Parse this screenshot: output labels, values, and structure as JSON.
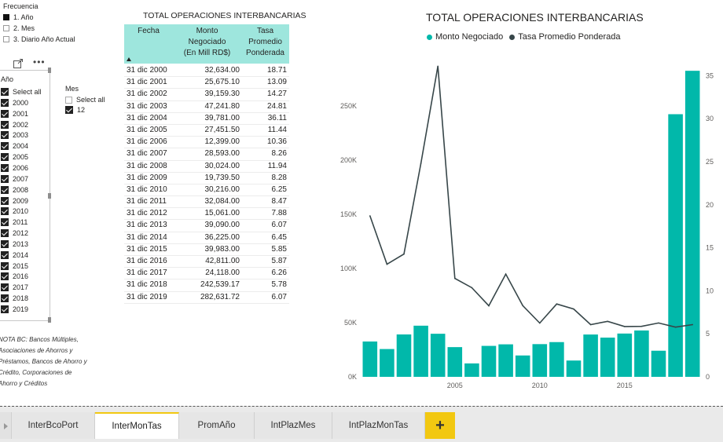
{
  "freq_slicer": {
    "title": "Frecuencia",
    "items": [
      {
        "label": "1. Año",
        "checked": true
      },
      {
        "label": "2. Mes",
        "checked": false
      },
      {
        "label": "3. Diario Año Actual",
        "checked": false
      }
    ]
  },
  "toolbar": {
    "more_label": "•••"
  },
  "year_slicer": {
    "title": "Año",
    "select_all": "Select all",
    "years": [
      "2000",
      "2001",
      "2002",
      "2003",
      "2004",
      "2005",
      "2006",
      "2007",
      "2008",
      "2009",
      "2010",
      "2011",
      "2012",
      "2013",
      "2014",
      "2015",
      "2016",
      "2017",
      "2018",
      "2019"
    ]
  },
  "mes_slicer": {
    "title": "Mes",
    "select_all": "Select all",
    "items": [
      "12"
    ]
  },
  "note": "NOTA BC: Bancos Múltiples, Asociaciones de Ahorros y Préstamos, Bancos de Ahorro y Crédito, Corporaciones de Ahorro y Créditos",
  "table": {
    "title": "TOTAL OPERACIONES INTERBANCARIAS",
    "headers": [
      "Fecha",
      "Monto Negociado (En Mill RD$)",
      "Tasa Promedio Ponderada"
    ],
    "header_lines": [
      [
        "Fecha"
      ],
      [
        "Monto",
        "Negociado",
        "(En Mill RD$)"
      ],
      [
        "Tasa",
        "Promedio",
        "Ponderada"
      ]
    ],
    "rows": [
      [
        "31 dic 2000",
        "32,634.00",
        "18.71"
      ],
      [
        "31 dic 2001",
        "25,675.10",
        "13.09"
      ],
      [
        "31 dic 2002",
        "39,159.30",
        "14.27"
      ],
      [
        "31 dic 2003",
        "47,241.80",
        "24.81"
      ],
      [
        "31 dic 2004",
        "39,781.00",
        "36.11"
      ],
      [
        "31 dic 2005",
        "27,451.50",
        "11.44"
      ],
      [
        "31 dic 2006",
        "12,399.00",
        "10.36"
      ],
      [
        "31 dic 2007",
        "28,593.00",
        "8.26"
      ],
      [
        "31 dic 2008",
        "30,024.00",
        "11.94"
      ],
      [
        "31 dic 2009",
        "19,739.50",
        "8.28"
      ],
      [
        "31 dic 2010",
        "30,216.00",
        "6.25"
      ],
      [
        "31 dic 2011",
        "32,084.00",
        "8.47"
      ],
      [
        "31 dic 2012",
        "15,061.00",
        "7.88"
      ],
      [
        "31 dic 2013",
        "39,090.00",
        "6.07"
      ],
      [
        "31 dic 2014",
        "36,225.00",
        "6.45"
      ],
      [
        "31 dic 2015",
        "39,983.00",
        "5.85"
      ],
      [
        "31 dic 2016",
        "42,811.00",
        "5.87"
      ],
      [
        "31 dic 2017",
        "24,118.00",
        "6.26"
      ],
      [
        "31 dic 2018",
        "242,539.17",
        "5.78"
      ],
      [
        "31 dic 2019",
        "282,631.72",
        "6.07"
      ]
    ]
  },
  "chart_data": {
    "type": "bar",
    "title": "TOTAL OPERACIONES INTERBANCARIAS",
    "x": [
      2000,
      2001,
      2002,
      2003,
      2004,
      2005,
      2006,
      2007,
      2008,
      2009,
      2010,
      2011,
      2012,
      2013,
      2014,
      2015,
      2016,
      2017,
      2018,
      2019
    ],
    "x_ticks": [
      2005,
      2010,
      2015
    ],
    "series": [
      {
        "name": "Monto Negociado",
        "type": "bar",
        "axis": "left",
        "color": "#01b8aa",
        "values": [
          32634.0,
          25675.1,
          39159.3,
          47241.8,
          39781.0,
          27451.5,
          12399.0,
          28593.0,
          30024.0,
          19739.5,
          30216.0,
          32084.0,
          15061.0,
          39090.0,
          36225.0,
          39983.0,
          42811.0,
          24118.0,
          242539.17,
          282631.72
        ]
      },
      {
        "name": "Tasa Promedio Ponderada",
        "type": "line",
        "axis": "right",
        "color": "#374649",
        "values": [
          18.71,
          13.09,
          14.27,
          24.81,
          36.11,
          11.44,
          10.36,
          8.26,
          11.94,
          8.28,
          6.25,
          8.47,
          7.88,
          6.07,
          6.45,
          5.85,
          5.87,
          6.26,
          5.78,
          6.07
        ]
      }
    ],
    "y_left": {
      "ticks": [
        0,
        50000,
        100000,
        150000,
        200000,
        250000
      ],
      "tick_labels": [
        "0K",
        "50K",
        "100K",
        "150K",
        "200K",
        "250K"
      ],
      "range": [
        0,
        290000
      ]
    },
    "y_right": {
      "ticks": [
        0,
        5,
        10,
        15,
        20,
        25,
        30,
        35
      ],
      "tick_labels": [
        "0",
        "5",
        "10",
        "15",
        "20",
        "25",
        "30",
        "35"
      ],
      "range": [
        0,
        36.5
      ]
    },
    "legend": "top",
    "grid": false
  },
  "tabs": [
    {
      "label": "InterBcoPort",
      "active": false
    },
    {
      "label": "InterMonTas",
      "active": true
    },
    {
      "label": "PromAño",
      "active": false
    },
    {
      "label": "IntPlazMes",
      "active": false
    },
    {
      "label": "IntPlazMonTas",
      "active": false
    }
  ],
  "add_tab_label": "+"
}
